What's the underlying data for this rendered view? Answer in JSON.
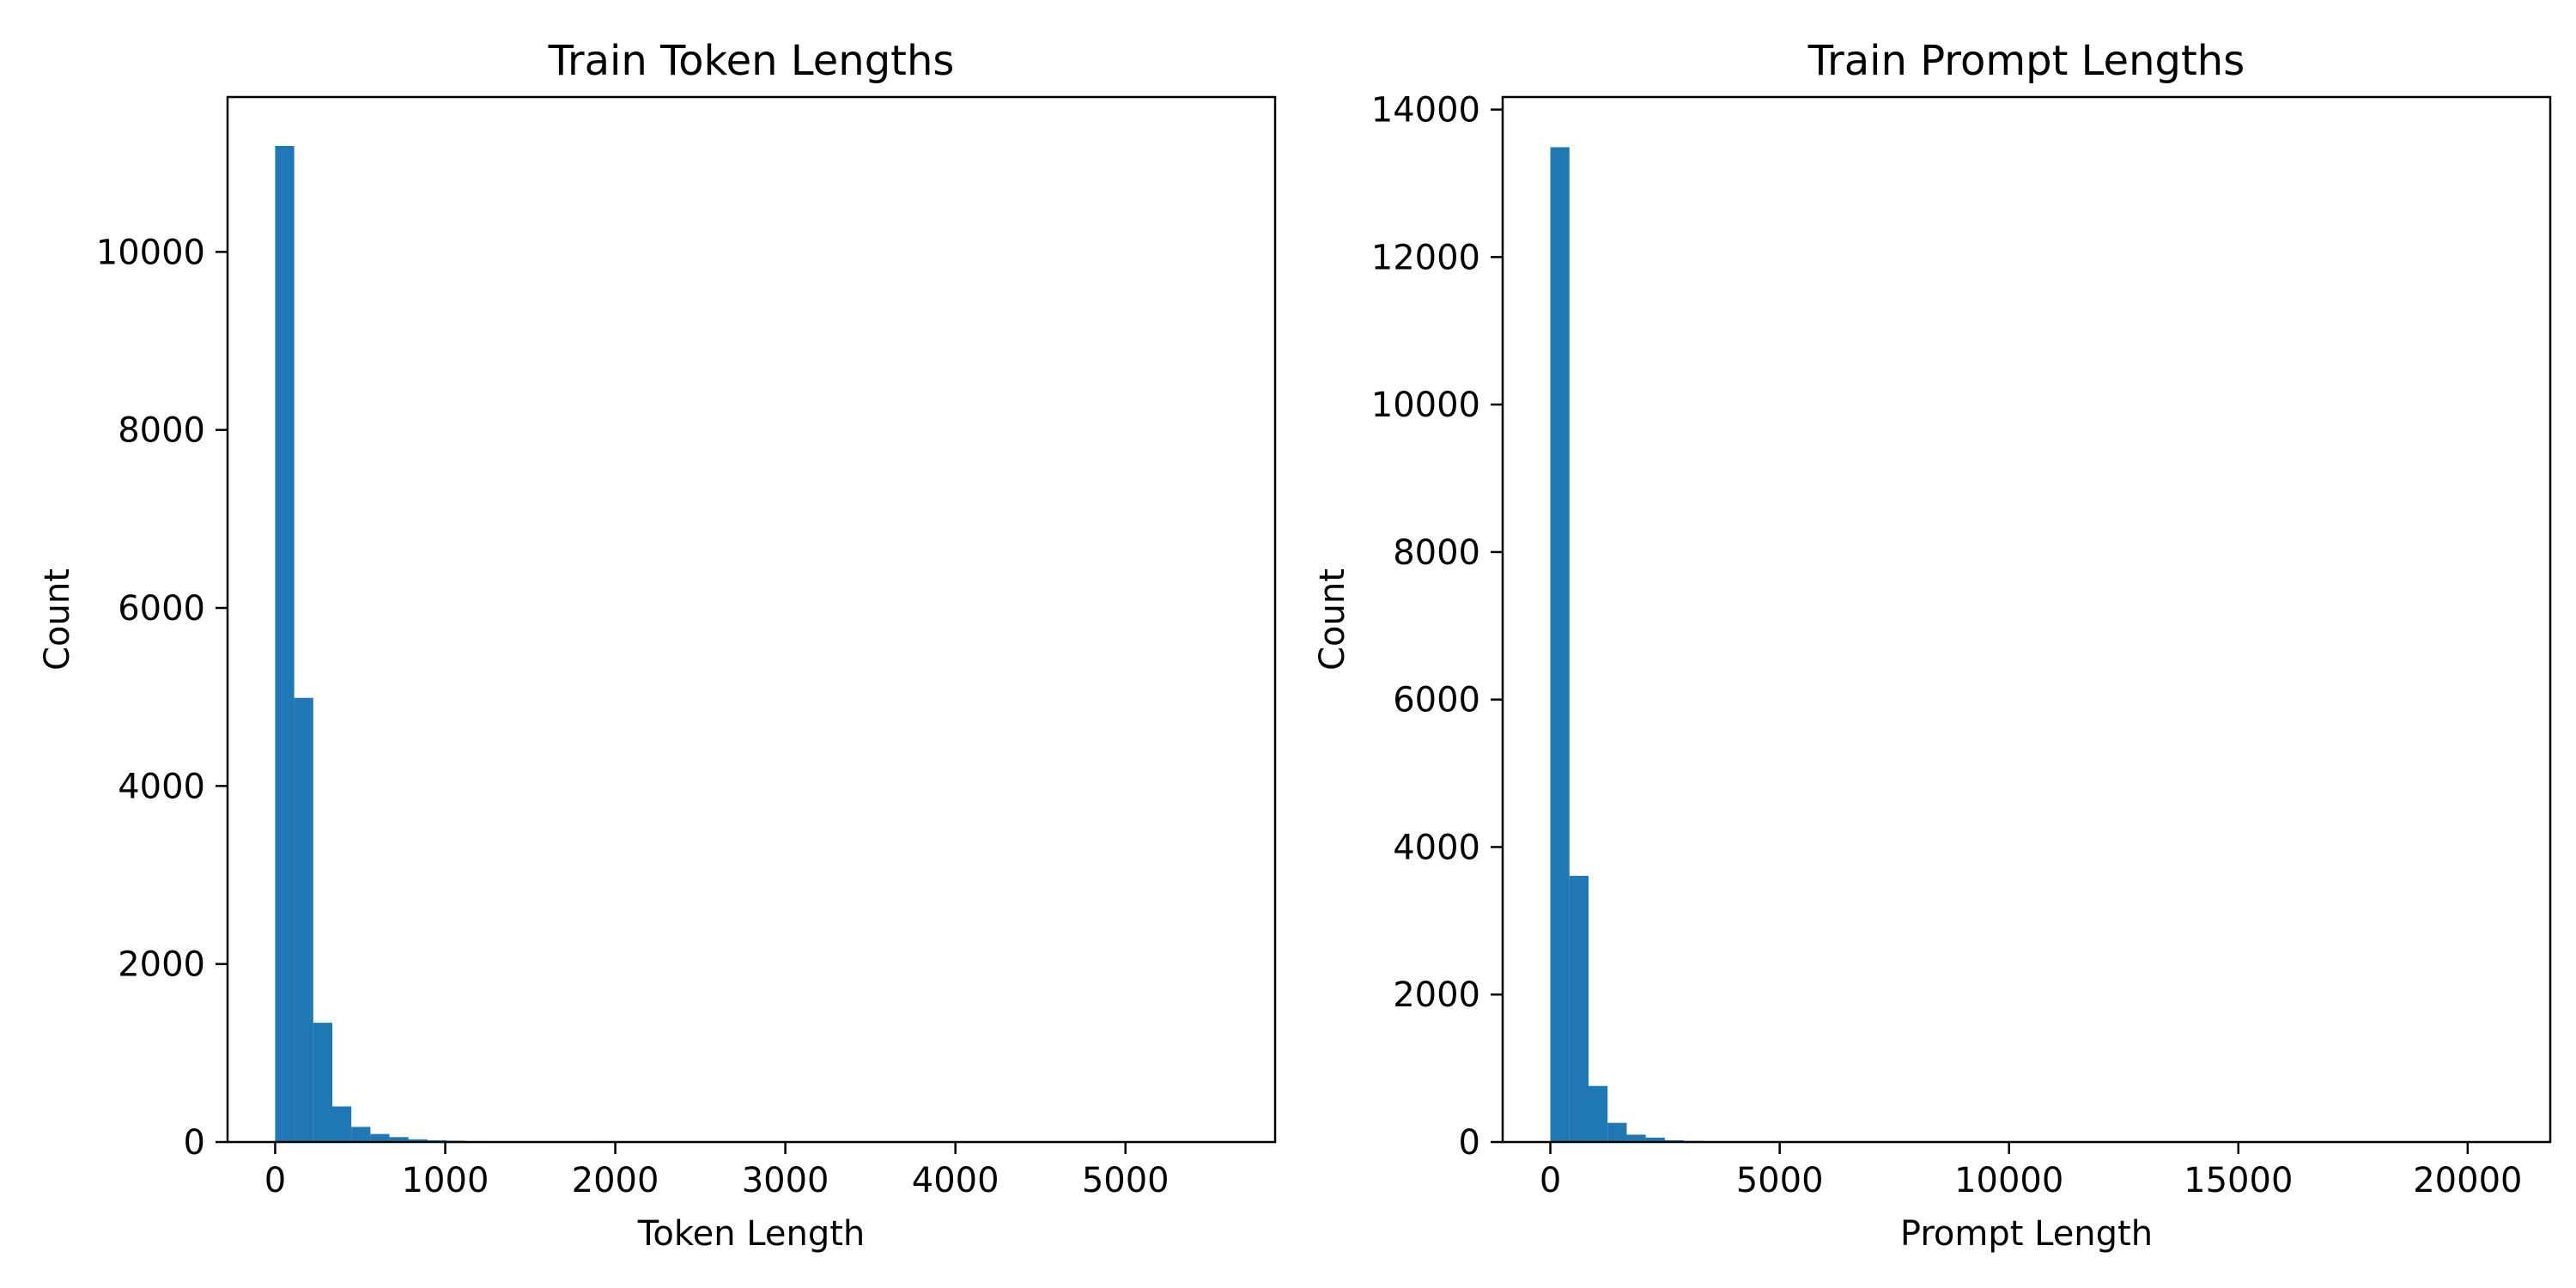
{
  "chart_data": [
    {
      "type": "bar",
      "title": "Train Token Lengths",
      "xlabel": "Token Length",
      "ylabel": "Count",
      "xlim": [
        -280,
        5880
      ],
      "ylim": [
        0,
        11740
      ],
      "xticks": [
        0,
        1000,
        2000,
        3000,
        4000,
        5000
      ],
      "yticks": [
        0,
        2000,
        4000,
        6000,
        8000,
        10000
      ],
      "bar_color": "#1f77b4",
      "bin_width": 112,
      "bins_start": [
        0,
        112,
        224,
        336,
        448,
        560,
        672,
        784,
        896,
        1008,
        1120,
        1232,
        1344,
        1456,
        1568,
        1680,
        1792,
        1904,
        2016,
        2128,
        2240,
        2352,
        2464,
        2576
      ],
      "values": [
        11190,
        4990,
        1340,
        400,
        170,
        90,
        55,
        30,
        20,
        15,
        10,
        6,
        8,
        4,
        3,
        3,
        2,
        10,
        2,
        1,
        1,
        1,
        1,
        1
      ]
    },
    {
      "type": "bar",
      "title": "Train Prompt Lengths",
      "xlabel": "Prompt Length",
      "ylabel": "Count",
      "xlim": [
        -1040,
        21800
      ],
      "ylim": [
        0,
        14170
      ],
      "xticks": [
        0,
        5000,
        10000,
        15000,
        20000
      ],
      "yticks": [
        0,
        2000,
        4000,
        6000,
        8000,
        10000,
        12000,
        14000
      ],
      "bar_color": "#1f77b4",
      "bin_width": 416,
      "bins_start": [
        0,
        416,
        832,
        1248,
        1664,
        2080,
        2496,
        2912,
        3328,
        3744,
        4160,
        4576,
        4992,
        5408
      ],
      "values": [
        13490,
        3610,
        760,
        260,
        100,
        60,
        25,
        15,
        10,
        8,
        5,
        3,
        8,
        2
      ]
    }
  ]
}
